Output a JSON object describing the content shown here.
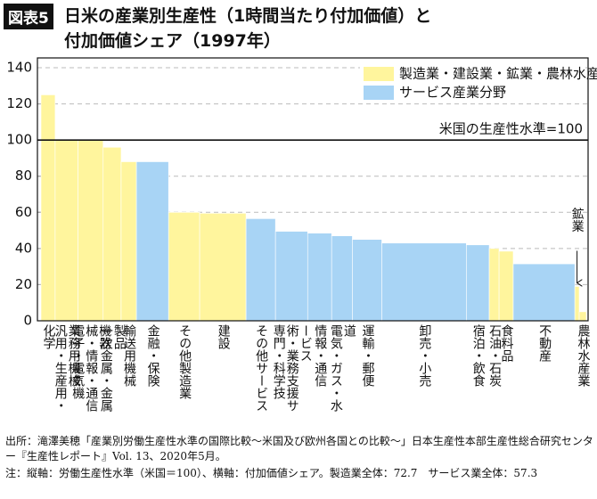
{
  "badge": "図表5",
  "chart_data": {
    "type": "bar",
    "title": "日米の産業別生産性（1時間当たり付加価値）と",
    "subtitle": "付加価値シェア（1997年）",
    "categories": [
      "化学",
      "汎用・生産用・業務用機械",
      "電子・電気機械・情報・通信機器",
      "一次金属・金属製品",
      "輸送用機械",
      "金融・保険",
      "その他製造業",
      "建設",
      "その他サービス",
      "専門・科学技術・業務支援サービス",
      "情報・通信",
      "電気・ガス・水道",
      "運輸・郵便",
      "卸売・小売",
      "宿泊・飲食",
      "石油・石炭",
      "食料品",
      "不動産",
      null,
      "農林水産業"
    ],
    "values": [
      125,
      100,
      100,
      96,
      88,
      88,
      60,
      59.5,
      56.5,
      49.5,
      48.5,
      47,
      45,
      43,
      42,
      40,
      38.5,
      31.5,
      19,
      5
    ],
    "widths": [
      2.6,
      4.2,
      4.6,
      3.3,
      2.8,
      5.9,
      5.7,
      8.5,
      5.4,
      5.9,
      4.4,
      3.8,
      5.4,
      15.5,
      4.2,
      1.8,
      2.6,
      11.3,
      0.8,
      1.3
    ],
    "groups": [
      0,
      0,
      0,
      0,
      0,
      1,
      0,
      0,
      1,
      1,
      1,
      1,
      1,
      1,
      1,
      0,
      0,
      1,
      0,
      0
    ],
    "series": [
      {
        "name": "製造業・建設業・鉱業・農林水産業",
        "color": "#fff59d"
      },
      {
        "name": "サービス産業分野",
        "color": "#a8d4f5"
      }
    ],
    "xlim": [
      0,
      100
    ],
    "ylim": [
      0,
      140
    ],
    "yticks": [
      0,
      20,
      40,
      60,
      80,
      100,
      120,
      140
    ],
    "grid": true,
    "legend": "upper right",
    "reference": {
      "value": 100,
      "label": "米国の生産性水準=100"
    },
    "callout": {
      "index": 18,
      "label": "鉱業"
    }
  },
  "footnotes": [
    "出所：滝澤美穂「産業別労働生産性水準の国際比較～米国及び欧州各国との比較～」日本生産性本部生産性総合研究センター『生産性レポート』Vol. 13、2020年5月。",
    "注：縦軸：労働生産性水準（米国＝100）、横軸：付加価値シェア。製造業全体：72.7　サービス業全体：57.3"
  ]
}
